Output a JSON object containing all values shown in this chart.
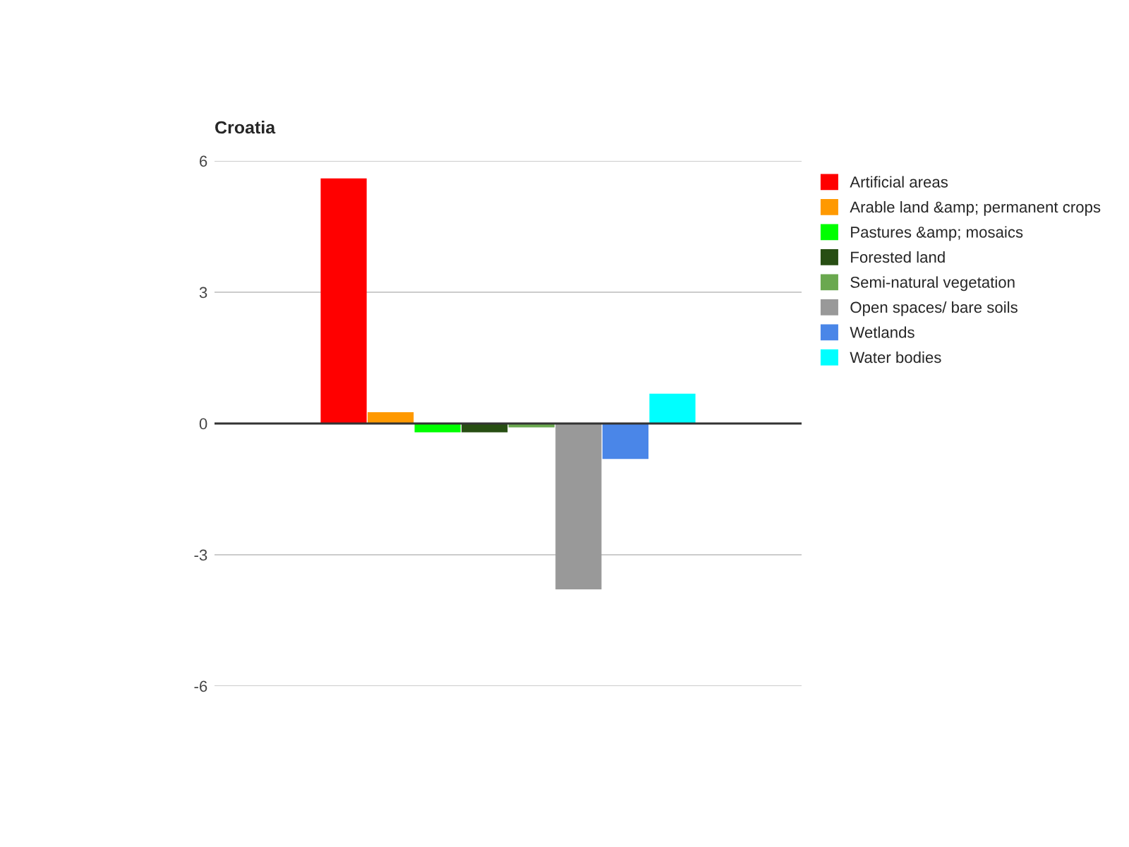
{
  "chart_data": {
    "type": "bar",
    "title": "Croatia",
    "categories": [
      null
    ],
    "series": [
      {
        "name": "Artificial areas",
        "color": "#ff0000",
        "values": [
          5.6
        ]
      },
      {
        "name": "Arable land &amp; permanent crops",
        "color": "#ff9900",
        "values": [
          0.26
        ]
      },
      {
        "name": "Pastures &amp; mosaics",
        "color": "#00ff00",
        "values": [
          -0.2
        ]
      },
      {
        "name": "Forested land",
        "color": "#274e13",
        "values": [
          -0.2
        ]
      },
      {
        "name": "Semi-natural vegetation",
        "color": "#6aa84f",
        "values": [
          -0.09
        ]
      },
      {
        "name": "Open spaces/ bare soils",
        "color": "#999999",
        "values": [
          -3.79
        ]
      },
      {
        "name": "Wetlands",
        "color": "#4a86e8",
        "values": [
          -0.81
        ]
      },
      {
        "name": "Water bodies",
        "color": "#00ffff",
        "values": [
          0.68
        ]
      }
    ],
    "ylim": [
      -6,
      6
    ],
    "yticks": [
      -6,
      -3,
      0,
      3,
      6
    ],
    "grid": "y",
    "legend": "right"
  }
}
